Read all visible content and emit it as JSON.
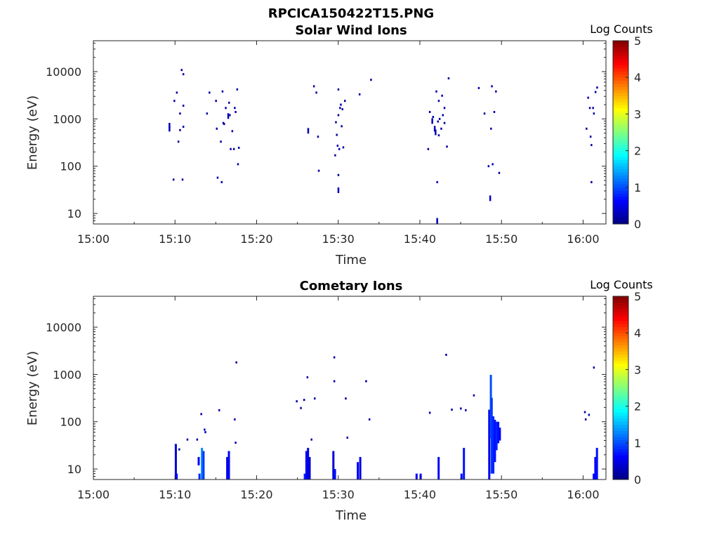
{
  "page_title": "RPCICA150422T15.PNG",
  "chart_data": [
    {
      "type": "heatmap",
      "title": "Solar Wind Ions",
      "xlabel": "Time",
      "ylabel": "Energy (eV)",
      "x_ticks": [
        "15:00",
        "15:10",
        "15:20",
        "15:30",
        "15:40",
        "15:50",
        "16:00"
      ],
      "x_tick_minutes": [
        0,
        10,
        20,
        30,
        40,
        50,
        60
      ],
      "xlim_minutes": [
        0,
        62.8
      ],
      "y_scale": "log",
      "ylim": [
        6,
        45000
      ],
      "y_ticks": [
        10,
        100,
        1000,
        10000
      ],
      "y_tick_labels": [
        "10",
        "100",
        "1000",
        "10000"
      ],
      "colorbar": {
        "label": "Log Counts",
        "min": 0,
        "max": 5,
        "ticks": [
          "0",
          "1",
          "2",
          "3",
          "4",
          "5"
        ],
        "colormap": "jet"
      },
      "grid": false,
      "points": [
        {
          "t": 9.3,
          "e": 620,
          "v": 0.3
        },
        {
          "t": 9.3,
          "e": 720,
          "v": 0.3
        },
        {
          "t": 9.8,
          "e": 52,
          "v": 0.2
        },
        {
          "t": 9.9,
          "e": 2400,
          "v": 0.2
        },
        {
          "t": 10.2,
          "e": 3600,
          "v": 0.2
        },
        {
          "t": 10.4,
          "e": 330,
          "v": 0.2
        },
        {
          "t": 10.6,
          "e": 1300,
          "v": 0.2
        },
        {
          "t": 10.6,
          "e": 580,
          "v": 0.2
        },
        {
          "t": 10.8,
          "e": 10800,
          "v": 0.2
        },
        {
          "t": 10.9,
          "e": 52,
          "v": 0.2
        },
        {
          "t": 11.0,
          "e": 8800,
          "v": 0.2
        },
        {
          "t": 11.0,
          "e": 1900,
          "v": 0.2
        },
        {
          "t": 11.0,
          "e": 680,
          "v": 0.2
        },
        {
          "t": 13.9,
          "e": 1300,
          "v": 0.2
        },
        {
          "t": 14.2,
          "e": 3600,
          "v": 0.2
        },
        {
          "t": 15.0,
          "e": 2400,
          "v": 0.2
        },
        {
          "t": 15.1,
          "e": 620,
          "v": 0.2
        },
        {
          "t": 15.2,
          "e": 57,
          "v": 0.2
        },
        {
          "t": 15.6,
          "e": 330,
          "v": 0.2
        },
        {
          "t": 15.7,
          "e": 46,
          "v": 0.2
        },
        {
          "t": 15.8,
          "e": 3800,
          "v": 0.2
        },
        {
          "t": 15.9,
          "e": 820,
          "v": 0.2
        },
        {
          "t": 16.0,
          "e": 780,
          "v": 0.2
        },
        {
          "t": 16.2,
          "e": 1700,
          "v": 0.2
        },
        {
          "t": 16.5,
          "e": 1150,
          "v": 0.3
        },
        {
          "t": 16.6,
          "e": 2200,
          "v": 0.2
        },
        {
          "t": 16.7,
          "e": 1200,
          "v": 0.2
        },
        {
          "t": 16.8,
          "e": 230,
          "v": 0.2
        },
        {
          "t": 17.0,
          "e": 550,
          "v": 0.2
        },
        {
          "t": 17.2,
          "e": 230,
          "v": 0.2
        },
        {
          "t": 17.3,
          "e": 1700,
          "v": 0.2
        },
        {
          "t": 17.4,
          "e": 1400,
          "v": 0.2
        },
        {
          "t": 17.6,
          "e": 4200,
          "v": 0.2
        },
        {
          "t": 17.7,
          "e": 110,
          "v": 0.2
        },
        {
          "t": 17.8,
          "e": 245,
          "v": 0.2
        },
        {
          "t": 26.3,
          "e": 560,
          "v": 0.3
        },
        {
          "t": 27.0,
          "e": 4900,
          "v": 0.2
        },
        {
          "t": 27.3,
          "e": 3600,
          "v": 0.2
        },
        {
          "t": 27.5,
          "e": 420,
          "v": 0.2
        },
        {
          "t": 27.6,
          "e": 80,
          "v": 0.2
        },
        {
          "t": 29.6,
          "e": 170,
          "v": 0.2
        },
        {
          "t": 29.7,
          "e": 850,
          "v": 0.2
        },
        {
          "t": 29.8,
          "e": 460,
          "v": 0.2
        },
        {
          "t": 29.9,
          "e": 270,
          "v": 0.2
        },
        {
          "t": 30.0,
          "e": 4200,
          "v": 0.2
        },
        {
          "t": 30.0,
          "e": 1200,
          "v": 0.2
        },
        {
          "t": 30.0,
          "e": 31,
          "v": 0.3
        },
        {
          "t": 30.0,
          "e": 65,
          "v": 0.2
        },
        {
          "t": 30.1,
          "e": 230,
          "v": 0.2
        },
        {
          "t": 30.2,
          "e": 1700,
          "v": 0.2
        },
        {
          "t": 30.3,
          "e": 2000,
          "v": 0.2
        },
        {
          "t": 30.4,
          "e": 700,
          "v": 0.2
        },
        {
          "t": 30.5,
          "e": 1600,
          "v": 0.2
        },
        {
          "t": 30.6,
          "e": 250,
          "v": 0.2
        },
        {
          "t": 30.8,
          "e": 2400,
          "v": 0.2
        },
        {
          "t": 32.6,
          "e": 3300,
          "v": 0.2
        },
        {
          "t": 34.0,
          "e": 6700,
          "v": 0.2
        },
        {
          "t": 41.0,
          "e": 230,
          "v": 0.2
        },
        {
          "t": 41.2,
          "e": 1400,
          "v": 0.2
        },
        {
          "t": 41.5,
          "e": 900,
          "v": 0.3
        },
        {
          "t": 41.6,
          "e": 1100,
          "v": 0.2
        },
        {
          "t": 41.8,
          "e": 620,
          "v": 0.3
        },
        {
          "t": 41.9,
          "e": 520,
          "v": 0.3
        },
        {
          "t": 42.0,
          "e": 3800,
          "v": 0.2
        },
        {
          "t": 42.1,
          "e": 46,
          "v": 0.2
        },
        {
          "t": 42.1,
          "e": 7,
          "v": 0.3
        },
        {
          "t": 42.2,
          "e": 880,
          "v": 0.2
        },
        {
          "t": 42.3,
          "e": 2400,
          "v": 0.2
        },
        {
          "t": 42.3,
          "e": 450,
          "v": 0.2
        },
        {
          "t": 42.4,
          "e": 1000,
          "v": 0.2
        },
        {
          "t": 42.6,
          "e": 620,
          "v": 0.2
        },
        {
          "t": 42.7,
          "e": 3100,
          "v": 0.2
        },
        {
          "t": 42.8,
          "e": 1200,
          "v": 0.2
        },
        {
          "t": 43.0,
          "e": 820,
          "v": 0.2
        },
        {
          "t": 43.0,
          "e": 1700,
          "v": 0.2
        },
        {
          "t": 43.3,
          "e": 260,
          "v": 0.2
        },
        {
          "t": 43.5,
          "e": 7200,
          "v": 0.2
        },
        {
          "t": 47.2,
          "e": 4500,
          "v": 0.2
        },
        {
          "t": 47.9,
          "e": 1300,
          "v": 0.2
        },
        {
          "t": 48.4,
          "e": 100,
          "v": 0.2
        },
        {
          "t": 48.6,
          "e": 21,
          "v": 0.3
        },
        {
          "t": 48.7,
          "e": 620,
          "v": 0.2
        },
        {
          "t": 48.8,
          "e": 4900,
          "v": 0.2
        },
        {
          "t": 48.9,
          "e": 110,
          "v": 0.2
        },
        {
          "t": 49.1,
          "e": 1400,
          "v": 0.2
        },
        {
          "t": 49.3,
          "e": 3800,
          "v": 0.2
        },
        {
          "t": 49.7,
          "e": 72,
          "v": 0.2
        },
        {
          "t": 60.4,
          "e": 620,
          "v": 0.2
        },
        {
          "t": 60.6,
          "e": 2800,
          "v": 0.2
        },
        {
          "t": 60.8,
          "e": 1700,
          "v": 0.2
        },
        {
          "t": 60.9,
          "e": 420,
          "v": 0.2
        },
        {
          "t": 61.0,
          "e": 280,
          "v": 0.2
        },
        {
          "t": 61.0,
          "e": 46,
          "v": 0.2
        },
        {
          "t": 61.2,
          "e": 1700,
          "v": 0.2
        },
        {
          "t": 61.3,
          "e": 1300,
          "v": 0.2
        },
        {
          "t": 61.5,
          "e": 3700,
          "v": 0.2
        },
        {
          "t": 61.7,
          "e": 4600,
          "v": 0.2
        }
      ],
      "columns": []
    },
    {
      "type": "heatmap",
      "title": "Cometary Ions",
      "xlabel": "Time",
      "ylabel": "Energy (eV)",
      "x_ticks": [
        "15:00",
        "15:10",
        "15:20",
        "15:30",
        "15:40",
        "15:50",
        "16:00"
      ],
      "x_tick_minutes": [
        0,
        10,
        20,
        30,
        40,
        50,
        60
      ],
      "xlim_minutes": [
        0,
        62.8
      ],
      "y_scale": "log",
      "ylim": [
        6,
        45000
      ],
      "y_ticks": [
        10,
        100,
        1000,
        10000
      ],
      "y_tick_labels": [
        "10",
        "100",
        "1000",
        "10000"
      ],
      "colorbar": {
        "label": "Log Counts",
        "min": 0,
        "max": 5,
        "ticks": [
          "0",
          "1",
          "2",
          "3",
          "4",
          "5"
        ],
        "colormap": "jet"
      },
      "grid": false,
      "points": [
        {
          "t": 10.5,
          "e": 26,
          "v": 0.2
        },
        {
          "t": 11.5,
          "e": 42,
          "v": 0.2
        },
        {
          "t": 12.7,
          "e": 42,
          "v": 0.2
        },
        {
          "t": 13.2,
          "e": 145,
          "v": 0.2
        },
        {
          "t": 13.6,
          "e": 68,
          "v": 0.2
        },
        {
          "t": 13.7,
          "e": 60,
          "v": 0.2
        },
        {
          "t": 15.4,
          "e": 175,
          "v": 0.2
        },
        {
          "t": 17.3,
          "e": 112,
          "v": 0.2
        },
        {
          "t": 17.4,
          "e": 36,
          "v": 0.2
        },
        {
          "t": 17.5,
          "e": 1800,
          "v": 0.2
        },
        {
          "t": 24.9,
          "e": 270,
          "v": 0.2
        },
        {
          "t": 25.4,
          "e": 195,
          "v": 0.2
        },
        {
          "t": 25.8,
          "e": 290,
          "v": 0.2
        },
        {
          "t": 26.2,
          "e": 870,
          "v": 0.2
        },
        {
          "t": 26.7,
          "e": 42,
          "v": 0.2
        },
        {
          "t": 27.1,
          "e": 310,
          "v": 0.2
        },
        {
          "t": 29.5,
          "e": 2300,
          "v": 0.2
        },
        {
          "t": 29.5,
          "e": 720,
          "v": 0.2
        },
        {
          "t": 30.9,
          "e": 310,
          "v": 0.2
        },
        {
          "t": 31.1,
          "e": 46,
          "v": 0.2
        },
        {
          "t": 33.4,
          "e": 720,
          "v": 0.2
        },
        {
          "t": 33.8,
          "e": 112,
          "v": 0.2
        },
        {
          "t": 41.2,
          "e": 155,
          "v": 0.2
        },
        {
          "t": 43.2,
          "e": 2600,
          "v": 0.2
        },
        {
          "t": 43.9,
          "e": 180,
          "v": 0.2
        },
        {
          "t": 45.0,
          "e": 190,
          "v": 0.2
        },
        {
          "t": 45.6,
          "e": 175,
          "v": 0.2
        },
        {
          "t": 46.6,
          "e": 360,
          "v": 0.2
        },
        {
          "t": 60.2,
          "e": 160,
          "v": 0.2
        },
        {
          "t": 60.3,
          "e": 112,
          "v": 0.2
        },
        {
          "t": 60.7,
          "e": 140,
          "v": 0.2
        },
        {
          "t": 61.3,
          "e": 1400,
          "v": 0.2
        }
      ],
      "columns": [
        {
          "t": 10.1,
          "e_low": 6,
          "e_high": 34,
          "v": 0.4
        },
        {
          "t": 10.2,
          "e_low": 6,
          "e_high": 8,
          "v": 0.6
        },
        {
          "t": 12.9,
          "e_low": 12,
          "e_high": 18,
          "v": 0.6
        },
        {
          "t": 13.0,
          "e_low": 6,
          "e_high": 8,
          "v": 0.8
        },
        {
          "t": 13.3,
          "e_low": 6,
          "e_high": 28,
          "v": 1.3
        },
        {
          "t": 13.5,
          "e_low": 6,
          "e_high": 24,
          "v": 0.9
        },
        {
          "t": 16.4,
          "e_low": 6,
          "e_high": 18,
          "v": 0.5
        },
        {
          "t": 16.6,
          "e_low": 6,
          "e_high": 24,
          "v": 0.6
        },
        {
          "t": 25.9,
          "e_low": 6,
          "e_high": 8,
          "v": 0.8
        },
        {
          "t": 26.1,
          "e_low": 6,
          "e_high": 24,
          "v": 0.6
        },
        {
          "t": 26.3,
          "e_low": 6,
          "e_high": 28,
          "v": 0.5
        },
        {
          "t": 26.5,
          "e_low": 6,
          "e_high": 18,
          "v": 0.4
        },
        {
          "t": 29.4,
          "e_low": 6,
          "e_high": 24,
          "v": 0.4
        },
        {
          "t": 29.6,
          "e_low": 6,
          "e_high": 10,
          "v": 0.7
        },
        {
          "t": 32.4,
          "e_low": 6,
          "e_high": 14,
          "v": 0.6
        },
        {
          "t": 32.7,
          "e_low": 6,
          "e_high": 18,
          "v": 0.5
        },
        {
          "t": 39.6,
          "e_low": 6,
          "e_high": 8,
          "v": 0.6
        },
        {
          "t": 40.1,
          "e_low": 6,
          "e_high": 8,
          "v": 0.6
        },
        {
          "t": 42.3,
          "e_low": 6,
          "e_high": 18,
          "v": 0.6
        },
        {
          "t": 45.1,
          "e_low": 6,
          "e_high": 8,
          "v": 0.7
        },
        {
          "t": 45.4,
          "e_low": 6,
          "e_high": 28,
          "v": 0.7
        },
        {
          "t": 48.5,
          "e_low": 6,
          "e_high": 180,
          "v": 0.5
        },
        {
          "t": 48.7,
          "e_low": 45,
          "e_high": 980,
          "v": 1.0
        },
        {
          "t": 48.8,
          "e_low": 8,
          "e_high": 320,
          "v": 0.9
        },
        {
          "t": 49.0,
          "e_low": 8,
          "e_high": 130,
          "v": 0.8
        },
        {
          "t": 49.2,
          "e_low": 14,
          "e_high": 110,
          "v": 0.7
        },
        {
          "t": 49.4,
          "e_low": 25,
          "e_high": 100,
          "v": 0.8
        },
        {
          "t": 49.6,
          "e_low": 35,
          "e_high": 100,
          "v": 0.7
        },
        {
          "t": 49.8,
          "e_low": 40,
          "e_high": 75,
          "v": 0.6
        },
        {
          "t": 61.3,
          "e_low": 6,
          "e_high": 8,
          "v": 0.7
        },
        {
          "t": 61.5,
          "e_low": 6,
          "e_high": 18,
          "v": 0.6
        },
        {
          "t": 61.7,
          "e_low": 6,
          "e_high": 28,
          "v": 0.7
        }
      ]
    }
  ]
}
